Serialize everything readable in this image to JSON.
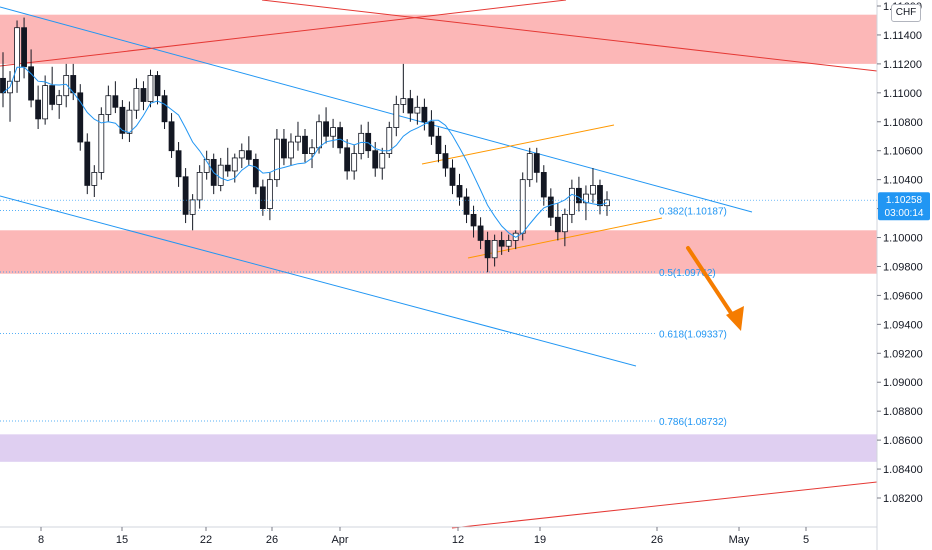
{
  "currency": "CHF",
  "current_price": "1.10258",
  "countdown": "03:00:14",
  "colors": {
    "up": "#ffffff",
    "down": "#131722",
    "zone": "#fbaaaa",
    "purple_zone": "#d9c7ee",
    "trend_blue": "#2196f3",
    "trend_red": "#e53935",
    "channel_orange": "#ff9800",
    "arrow": "#f57c00",
    "fib": "#2196f3",
    "price_tag": "#2196f3"
  },
  "chart_data": {
    "type": "candlestick",
    "title": "",
    "xlabel": "",
    "ylabel": "",
    "ylim": [
      1.08,
      1.116
    ],
    "grid": false,
    "x_tick_labels": [
      "8",
      "15",
      "22",
      "26",
      "Apr",
      "12",
      "19",
      "26",
      "May",
      "5"
    ],
    "y_tick_labels": [
      "1.11600",
      "1.11400",
      "1.11200",
      "1.11000",
      "1.10800",
      "1.10600",
      "1.10400",
      "1.10200",
      "1.10000",
      "1.09800",
      "1.09600",
      "1.09400",
      "1.09200",
      "1.09000",
      "1.08800",
      "1.08600",
      "1.08400",
      "1.08200"
    ],
    "fibonacci": [
      {
        "label": "0.382(1.10187)",
        "value": 1.10187
      },
      {
        "label": "0.5(1.09762)",
        "value": 1.09762
      },
      {
        "label": "0.618(1.09337)",
        "value": 1.09337
      },
      {
        "label": "0.786(1.08732)",
        "value": 1.08732
      }
    ],
    "zones": [
      {
        "name": "upper-resistance",
        "from": 1.112,
        "to": 1.1154
      },
      {
        "name": "support",
        "from": 1.0975,
        "to": 1.1005
      },
      {
        "name": "lower-support",
        "from": 1.0845,
        "to": 1.0864
      }
    ],
    "ohlc": [
      [
        1.111,
        1.1128,
        1.109,
        1.11
      ],
      [
        1.11,
        1.1115,
        1.108,
        1.1108
      ],
      [
        1.1108,
        1.115,
        1.11,
        1.1145
      ],
      [
        1.1145,
        1.1152,
        1.111,
        1.1118
      ],
      [
        1.1118,
        1.113,
        1.109,
        1.1095
      ],
      [
        1.1095,
        1.1105,
        1.1075,
        1.1082
      ],
      [
        1.1082,
        1.1112,
        1.1078,
        1.1105
      ],
      [
        1.1105,
        1.1118,
        1.1088,
        1.1092
      ],
      [
        1.1092,
        1.1102,
        1.1082,
        1.1098
      ],
      [
        1.1098,
        1.112,
        1.109,
        1.1112
      ],
      [
        1.1112,
        1.112,
        1.1095,
        1.11
      ],
      [
        1.11,
        1.1106,
        1.106,
        1.1066
      ],
      [
        1.1066,
        1.1072,
        1.103,
        1.1036
      ],
      [
        1.1036,
        1.105,
        1.1028,
        1.1045
      ],
      [
        1.1045,
        1.109,
        1.104,
        1.1085
      ],
      [
        1.1085,
        1.1105,
        1.108,
        1.1098
      ],
      [
        1.1098,
        1.1108,
        1.1086,
        1.109
      ],
      [
        1.109,
        1.1095,
        1.1068,
        1.1072
      ],
      [
        1.1072,
        1.1094,
        1.1066,
        1.1088
      ],
      [
        1.1088,
        1.111,
        1.1082,
        1.1103
      ],
      [
        1.1103,
        1.1108,
        1.1088,
        1.1094
      ],
      [
        1.1094,
        1.1116,
        1.109,
        1.1112
      ],
      [
        1.1112,
        1.1115,
        1.1092,
        1.1098
      ],
      [
        1.1098,
        1.1102,
        1.1075,
        1.108
      ],
      [
        1.108,
        1.1086,
        1.1055,
        1.106
      ],
      [
        1.106,
        1.1066,
        1.1035,
        1.1042
      ],
      [
        1.1042,
        1.1048,
        1.101,
        1.1016
      ],
      [
        1.1016,
        1.103,
        1.1005,
        1.1026
      ],
      [
        1.1026,
        1.105,
        1.102,
        1.1045
      ],
      [
        1.1045,
        1.106,
        1.104,
        1.1054
      ],
      [
        1.1054,
        1.1058,
        1.103,
        1.1036
      ],
      [
        1.1036,
        1.1055,
        1.1032,
        1.105
      ],
      [
        1.105,
        1.1062,
        1.1042,
        1.1046
      ],
      [
        1.1046,
        1.1058,
        1.1038,
        1.1055
      ],
      [
        1.1055,
        1.1065,
        1.1048,
        1.106
      ],
      [
        1.106,
        1.107,
        1.105,
        1.1054
      ],
      [
        1.1054,
        1.1058,
        1.103,
        1.1035
      ],
      [
        1.1035,
        1.104,
        1.1015,
        1.102
      ],
      [
        1.102,
        1.1045,
        1.1012,
        1.104
      ],
      [
        1.104,
        1.1075,
        1.1035,
        1.1068
      ],
      [
        1.1068,
        1.1075,
        1.105,
        1.1055
      ],
      [
        1.1055,
        1.1072,
        1.105,
        1.1066
      ],
      [
        1.1066,
        1.108,
        1.106,
        1.107
      ],
      [
        1.107,
        1.1075,
        1.1052,
        1.1058
      ],
      [
        1.1058,
        1.1068,
        1.1048,
        1.1062
      ],
      [
        1.1062,
        1.1085,
        1.1058,
        1.108
      ],
      [
        1.108,
        1.109,
        1.1065,
        1.107
      ],
      [
        1.107,
        1.1082,
        1.1062,
        1.1076
      ],
      [
        1.1076,
        1.108,
        1.1058,
        1.1062
      ],
      [
        1.1062,
        1.1068,
        1.104,
        1.1046
      ],
      [
        1.1046,
        1.1064,
        1.104,
        1.1058
      ],
      [
        1.1058,
        1.1078,
        1.1054,
        1.1072
      ],
      [
        1.1072,
        1.108,
        1.1055,
        1.106
      ],
      [
        1.106,
        1.1066,
        1.1042,
        1.1048
      ],
      [
        1.1048,
        1.1062,
        1.104,
        1.1058
      ],
      [
        1.1058,
        1.108,
        1.1055,
        1.1076
      ],
      [
        1.1076,
        1.1098,
        1.107,
        1.1092
      ],
      [
        1.1092,
        1.112,
        1.1086,
        1.1096
      ],
      [
        1.1096,
        1.1102,
        1.108,
        1.1086
      ],
      [
        1.1086,
        1.1098,
        1.1078,
        1.109
      ],
      [
        1.109,
        1.1096,
        1.1074,
        1.108
      ],
      [
        1.108,
        1.1088,
        1.1064,
        1.107
      ],
      [
        1.107,
        1.1076,
        1.1052,
        1.1058
      ],
      [
        1.1058,
        1.1064,
        1.1042,
        1.1048
      ],
      [
        1.1048,
        1.1054,
        1.103,
        1.1036
      ],
      [
        1.1036,
        1.1044,
        1.1022,
        1.1028
      ],
      [
        1.1028,
        1.1034,
        1.101,
        1.1016
      ],
      [
        1.1016,
        1.1022,
        1.1,
        1.1008
      ],
      [
        1.1008,
        1.1014,
        1.0992,
        1.0998
      ],
      [
        1.0998,
        1.1004,
        1.0976,
        1.0986
      ],
      [
        1.0986,
        1.1002,
        1.098,
        1.0998
      ],
      [
        1.0998,
        1.1004,
        1.0988,
        1.0994
      ],
      [
        1.0994,
        1.1002,
        1.099,
        1.0998
      ],
      [
        1.0998,
        1.1005,
        1.0992,
        1.1003
      ],
      [
        1.1003,
        1.1045,
        1.0998,
        1.104
      ],
      [
        1.104,
        1.1062,
        1.1035,
        1.1058
      ],
      [
        1.1058,
        1.1062,
        1.1038,
        1.1045
      ],
      [
        1.1045,
        1.105,
        1.1022,
        1.1028
      ],
      [
        1.1028,
        1.1034,
        1.1008,
        1.1014
      ],
      [
        1.1014,
        1.1024,
        1.0998,
        1.1004
      ],
      [
        1.1004,
        1.102,
        1.0994,
        1.1016
      ],
      [
        1.1016,
        1.104,
        1.101,
        1.1034
      ],
      [
        1.1034,
        1.1042,
        1.1018,
        1.1024
      ],
      [
        1.1024,
        1.1036,
        1.1012,
        1.103
      ],
      [
        1.103,
        1.1048,
        1.1024,
        1.1036
      ],
      [
        1.1036,
        1.104,
        1.1016,
        1.1022
      ],
      [
        1.1022,
        1.1032,
        1.1015,
        1.1026
      ]
    ]
  }
}
